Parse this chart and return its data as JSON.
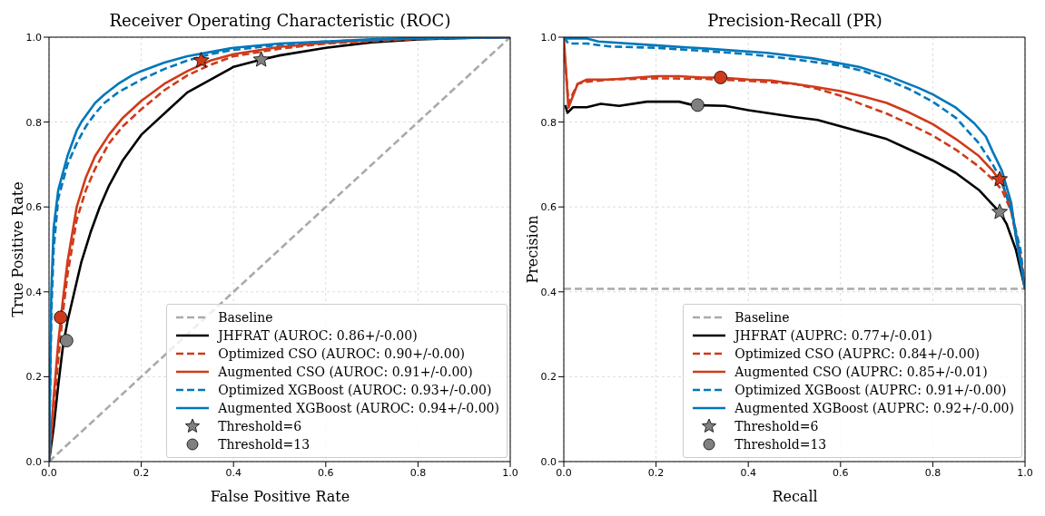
{
  "chart_data": [
    {
      "type": "line",
      "title": "Receiver Operating Characteristic (ROC)",
      "xlabel": "False Positive Rate",
      "ylabel": "True Positive Rate",
      "xlim": [
        0,
        1
      ],
      "ylim": [
        0,
        1
      ],
      "xticks": [
        {
          "value": 0,
          "label": "0.0"
        },
        {
          "value": 0.2,
          "label": "0.2"
        },
        {
          "value": 0.4,
          "label": "0.4"
        },
        {
          "value": 0.6,
          "label": "0.6"
        },
        {
          "value": 0.8,
          "label": "0.8"
        },
        {
          "value": 1,
          "label": "1.0"
        }
      ],
      "yticks": [
        {
          "value": 0,
          "label": "0.0"
        },
        {
          "value": 0.2,
          "label": "0.2"
        },
        {
          "value": 0.4,
          "label": "0.4"
        },
        {
          "value": 0.6,
          "label": "0.6"
        },
        {
          "value": 0.8,
          "label": "0.8"
        },
        {
          "value": 1,
          "label": "1.0"
        }
      ],
      "grid": true,
      "legend": "bottom right",
      "series": [
        {
          "name": "Baseline",
          "color": "#aaaaaa",
          "line_style": "dashed",
          "x": [
            0,
            1
          ],
          "values": [
            0,
            1
          ]
        },
        {
          "name": "JHFRAT (AUROC: 0.86+/-0.00)",
          "type": "line",
          "color": "#000000",
          "line_style": "solid",
          "x": [
            0,
            0.01,
            0.02,
            0.03,
            0.04,
            0.055,
            0.07,
            0.09,
            0.11,
            0.13,
            0.16,
            0.2,
            0.26,
            0.3,
            0.35,
            0.4,
            0.46,
            0.5,
            0.6,
            0.7,
            0.8,
            0.9,
            1
          ],
          "values": [
            0,
            0.08,
            0.18,
            0.27,
            0.33,
            0.4,
            0.47,
            0.54,
            0.6,
            0.65,
            0.71,
            0.77,
            0.83,
            0.87,
            0.9,
            0.93,
            0.947,
            0.957,
            0.975,
            0.988,
            0.995,
            0.998,
            1
          ]
        },
        {
          "name": "Optimized CSO (AUROC: 0.90+/-0.00)",
          "type": "line",
          "color": "#d03a1a",
          "line_style": "dashed",
          "x": [
            0,
            0.01,
            0.02,
            0.03,
            0.04,
            0.06,
            0.08,
            0.1,
            0.13,
            0.16,
            0.2,
            0.25,
            0.3,
            0.35,
            0.4,
            0.5,
            0.6,
            0.8,
            1
          ],
          "values": [
            0,
            0.12,
            0.24,
            0.35,
            0.44,
            0.57,
            0.64,
            0.69,
            0.75,
            0.79,
            0.83,
            0.875,
            0.91,
            0.935,
            0.955,
            0.973,
            0.985,
            0.996,
            1
          ]
        },
        {
          "name": "Augmented CSO (AUROC: 0.91+/-0.00)",
          "type": "line",
          "color": "#d03a1a",
          "line_style": "solid",
          "x": [
            0,
            0.01,
            0.02,
            0.03,
            0.04,
            0.06,
            0.08,
            0.1,
            0.13,
            0.16,
            0.2,
            0.25,
            0.3,
            0.35,
            0.4,
            0.5,
            0.6,
            0.7,
            0.8,
            1
          ],
          "values": [
            0,
            0.15,
            0.28,
            0.38,
            0.47,
            0.6,
            0.67,
            0.72,
            0.77,
            0.81,
            0.85,
            0.89,
            0.92,
            0.945,
            0.96,
            0.977,
            0.987,
            0.993,
            0.997,
            1
          ]
        },
        {
          "name": "Optimized XGBoost (AUROC: 0.93+/-0.00)",
          "type": "line",
          "color": "#0077bb",
          "line_style": "dashed",
          "x": [
            0,
            0.005,
            0.01,
            0.02,
            0.04,
            0.06,
            0.08,
            0.1,
            0.12,
            0.15,
            0.2,
            0.25,
            0.3,
            0.35,
            0.4,
            0.5,
            0.6,
            0.8,
            1
          ],
          "values": [
            0,
            0.35,
            0.5,
            0.62,
            0.7,
            0.75,
            0.79,
            0.82,
            0.845,
            0.87,
            0.9,
            0.925,
            0.945,
            0.96,
            0.97,
            0.982,
            0.99,
            0.997,
            1
          ]
        },
        {
          "name": "Augmented XGBoost (AUROC: 0.94+/-0.00)",
          "type": "line",
          "color": "#0077bb",
          "line_style": "solid",
          "x": [
            0,
            0.005,
            0.01,
            0.02,
            0.04,
            0.06,
            0.07,
            0.1,
            0.12,
            0.15,
            0.18,
            0.2,
            0.25,
            0.3,
            0.35,
            0.4,
            0.5,
            0.6,
            0.7,
            0.8,
            1
          ],
          "values": [
            0,
            0.4,
            0.55,
            0.64,
            0.72,
            0.78,
            0.8,
            0.845,
            0.865,
            0.89,
            0.91,
            0.92,
            0.94,
            0.955,
            0.965,
            0.975,
            0.985,
            0.99,
            0.995,
            0.998,
            1
          ]
        },
        {
          "name": "Threshold=6",
          "type": "scatter",
          "marker": "star",
          "color": "#808080",
          "colors": [
            "#d03a1a",
            "#808080"
          ],
          "x": [
            0.33,
            0.46
          ],
          "values": [
            0.945,
            0.947
          ]
        },
        {
          "name": "Threshold=13",
          "type": "scatter",
          "marker": "circle",
          "color": "#808080",
          "colors": [
            "#d03a1a",
            "#808080"
          ],
          "x": [
            0.025,
            0.038
          ],
          "values": [
            0.34,
            0.285
          ]
        }
      ]
    },
    {
      "type": "line",
      "title": "Precision-Recall (PR)",
      "xlabel": "Recall",
      "ylabel": "Precision",
      "xlim": [
        0,
        1
      ],
      "ylim": [
        0,
        1
      ],
      "xticks": [
        {
          "value": 0,
          "label": "0.0"
        },
        {
          "value": 0.2,
          "label": "0.2"
        },
        {
          "value": 0.4,
          "label": "0.4"
        },
        {
          "value": 0.6,
          "label": "0.6"
        },
        {
          "value": 0.8,
          "label": "0.8"
        },
        {
          "value": 1,
          "label": "1.0"
        }
      ],
      "yticks": [
        {
          "value": 0,
          "label": "0.0"
        },
        {
          "value": 0.2,
          "label": "0.2"
        },
        {
          "value": 0.4,
          "label": "0.4"
        },
        {
          "value": 0.6,
          "label": "0.6"
        },
        {
          "value": 0.8,
          "label": "0.8"
        },
        {
          "value": 1,
          "label": "1.0"
        }
      ],
      "grid": true,
      "legend": "bottom right",
      "series": [
        {
          "name": "Baseline",
          "color": "#aaaaaa",
          "line_style": "dashed",
          "x": [
            0,
            1
          ],
          "values": [
            0.407,
            0.407
          ]
        },
        {
          "name": "JHFRAT (AUPRC: 0.77+/-0.01)",
          "type": "line",
          "color": "#000000",
          "line_style": "solid",
          "x": [
            0.003,
            0.008,
            0.02,
            0.05,
            0.08,
            0.12,
            0.18,
            0.25,
            0.28,
            0.35,
            0.4,
            0.45,
            0.5,
            0.55,
            0.6,
            0.65,
            0.7,
            0.75,
            0.8,
            0.85,
            0.9,
            0.93,
            0.945,
            0.96,
            0.98,
            1
          ],
          "values": [
            0.84,
            0.822,
            0.835,
            0.835,
            0.843,
            0.838,
            0.848,
            0.848,
            0.84,
            0.838,
            0.828,
            0.82,
            0.812,
            0.805,
            0.79,
            0.775,
            0.76,
            0.735,
            0.71,
            0.68,
            0.64,
            0.605,
            0.588,
            0.56,
            0.5,
            0.407
          ]
        },
        {
          "name": "Optimized CSO (AUPRC: 0.84+/-0.00)",
          "type": "line",
          "color": "#d03a1a",
          "line_style": "dashed",
          "x": [
            0,
            0.01,
            0.03,
            0.05,
            0.1,
            0.2,
            0.3,
            0.4,
            0.5,
            0.55,
            0.6,
            0.65,
            0.7,
            0.75,
            0.8,
            0.85,
            0.9,
            0.93,
            0.95,
            0.97,
            0.99,
            1
          ],
          "values": [
            0.98,
            0.845,
            0.89,
            0.895,
            0.9,
            0.903,
            0.902,
            0.897,
            0.89,
            0.878,
            0.862,
            0.84,
            0.82,
            0.795,
            0.768,
            0.735,
            0.695,
            0.665,
            0.64,
            0.59,
            0.48,
            0.407
          ]
        },
        {
          "name": "Augmented CSO (AUPRC: 0.85+/-0.01)",
          "type": "line",
          "color": "#d03a1a",
          "line_style": "solid",
          "x": [
            0,
            0.01,
            0.03,
            0.05,
            0.1,
            0.2,
            0.25,
            0.3,
            0.34,
            0.4,
            0.45,
            0.5,
            0.55,
            0.6,
            0.65,
            0.7,
            0.75,
            0.8,
            0.85,
            0.9,
            0.93,
            0.95,
            0.97,
            0.99,
            1
          ],
          "values": [
            1,
            0.834,
            0.89,
            0.9,
            0.9,
            0.908,
            0.908,
            0.905,
            0.905,
            0.9,
            0.898,
            0.89,
            0.882,
            0.873,
            0.86,
            0.845,
            0.822,
            0.795,
            0.76,
            0.72,
            0.685,
            0.655,
            0.6,
            0.48,
            0.407
          ]
        },
        {
          "name": "Optimized XGBoost (AUPRC: 0.91+/-0.00)",
          "type": "line",
          "color": "#0077bb",
          "line_style": "dashed",
          "x": [
            0,
            0.01,
            0.05,
            0.1,
            0.2,
            0.3,
            0.4,
            0.5,
            0.6,
            0.65,
            0.7,
            0.75,
            0.8,
            0.85,
            0.9,
            0.93,
            0.95,
            0.97,
            0.99,
            1
          ],
          "values": [
            1,
            0.985,
            0.985,
            0.978,
            0.975,
            0.968,
            0.96,
            0.948,
            0.933,
            0.92,
            0.9,
            0.877,
            0.848,
            0.81,
            0.75,
            0.7,
            0.66,
            0.59,
            0.5,
            0.407
          ]
        },
        {
          "name": "Augmented XGBoost (AUPRC: 0.92+/-0.00)",
          "type": "line",
          "color": "#0077bb",
          "line_style": "solid",
          "x": [
            0,
            0.05,
            0.075,
            0.21,
            0.31,
            0.44,
            0.54,
            0.64,
            0.7,
            0.77,
            0.8,
            0.85,
            0.89,
            0.915,
            0.93,
            0.95,
            0.97,
            0.98,
            1
          ],
          "values": [
            0.997,
            0.997,
            0.99,
            0.98,
            0.973,
            0.963,
            0.95,
            0.93,
            0.91,
            0.88,
            0.865,
            0.834,
            0.797,
            0.766,
            0.73,
            0.685,
            0.61,
            0.53,
            0.407
          ]
        },
        {
          "name": "Threshold=6",
          "type": "scatter",
          "marker": "star",
          "color": "#808080",
          "colors": [
            "#d03a1a",
            "#808080"
          ],
          "x": [
            0.945,
            0.945
          ],
          "values": [
            0.665,
            0.588
          ]
        },
        {
          "name": "Threshold=13",
          "type": "scatter",
          "marker": "circle",
          "color": "#808080",
          "colors": [
            "#d03a1a",
            "#808080"
          ],
          "x": [
            0.34,
            0.29
          ],
          "values": [
            0.905,
            0.84
          ]
        }
      ]
    }
  ]
}
